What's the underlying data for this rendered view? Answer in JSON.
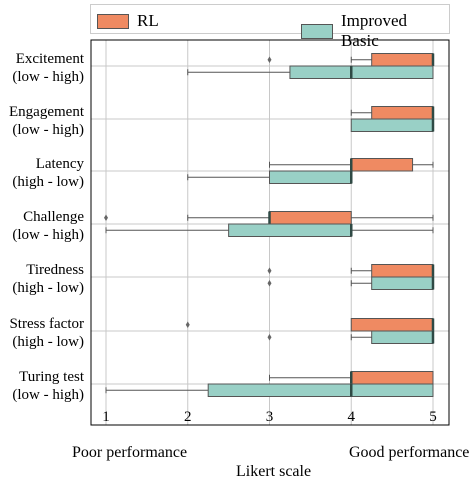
{
  "chart_data": {
    "type": "boxplot",
    "orientation": "horizontal",
    "xlabel": "Likert scale",
    "xlim": [
      0.85,
      5.15
    ],
    "xticks": [
      1,
      2,
      3,
      4,
      5
    ],
    "grid": true,
    "legend_position": "top",
    "colors": {
      "RL": "#ef8a62",
      "Improved Basic": "#99d0c6"
    },
    "extra_labels": {
      "left": "Poor performance",
      "right": "Good performance"
    },
    "categories": [
      "Excitement\n(low - high)",
      "Engagement\n(low - high)",
      "Latency\n(high - low)",
      "Challenge\n(low - high)",
      "Tiredness\n(high - low)",
      "Stress factor\n(high - low)",
      "Turing test\n(low - high)"
    ],
    "series": [
      {
        "name": "RL",
        "boxes": [
          {
            "whislo": 4,
            "q1": 4.25,
            "med": 5,
            "q3": 5,
            "whishi": 5,
            "fliers": [
              3
            ]
          },
          {
            "whislo": 4,
            "q1": 4.25,
            "med": 5,
            "q3": 5,
            "whishi": 5,
            "fliers": []
          },
          {
            "whislo": 3,
            "q1": 4,
            "med": 4,
            "q3": 4.75,
            "whishi": 5,
            "fliers": []
          },
          {
            "whislo": 2,
            "q1": 3,
            "med": 3,
            "q3": 4,
            "whishi": 5,
            "fliers": [
              1
            ]
          },
          {
            "whislo": 4,
            "q1": 4.25,
            "med": 5,
            "q3": 5,
            "whishi": 5,
            "fliers": [
              3
            ]
          },
          {
            "whislo": 4,
            "q1": 4,
            "med": 5,
            "q3": 5,
            "whishi": 5,
            "fliers": [
              2
            ]
          },
          {
            "whislo": 3,
            "q1": 4,
            "med": 4,
            "q3": 5,
            "whishi": 5,
            "fliers": []
          }
        ]
      },
      {
        "name": "Improved Basic",
        "boxes": [
          {
            "whislo": 2,
            "q1": 3.25,
            "med": 4,
            "q3": 5,
            "whishi": 5,
            "fliers": []
          },
          {
            "whislo": 4,
            "q1": 4,
            "med": 5,
            "q3": 5,
            "whishi": 5,
            "fliers": []
          },
          {
            "whislo": 2,
            "q1": 3,
            "med": 4,
            "q3": 4,
            "whishi": 4,
            "fliers": []
          },
          {
            "whislo": 1,
            "q1": 2.5,
            "med": 4,
            "q3": 4,
            "whishi": 5,
            "fliers": []
          },
          {
            "whislo": 4,
            "q1": 4.25,
            "med": 5,
            "q3": 5,
            "whishi": 5,
            "fliers": [
              3
            ]
          },
          {
            "whislo": 4,
            "q1": 4.25,
            "med": 5,
            "q3": 5,
            "whishi": 5,
            "fliers": [
              3
            ]
          },
          {
            "whislo": 1,
            "q1": 2.25,
            "med": 4,
            "q3": 5,
            "whishi": 5,
            "fliers": []
          }
        ]
      }
    ]
  }
}
